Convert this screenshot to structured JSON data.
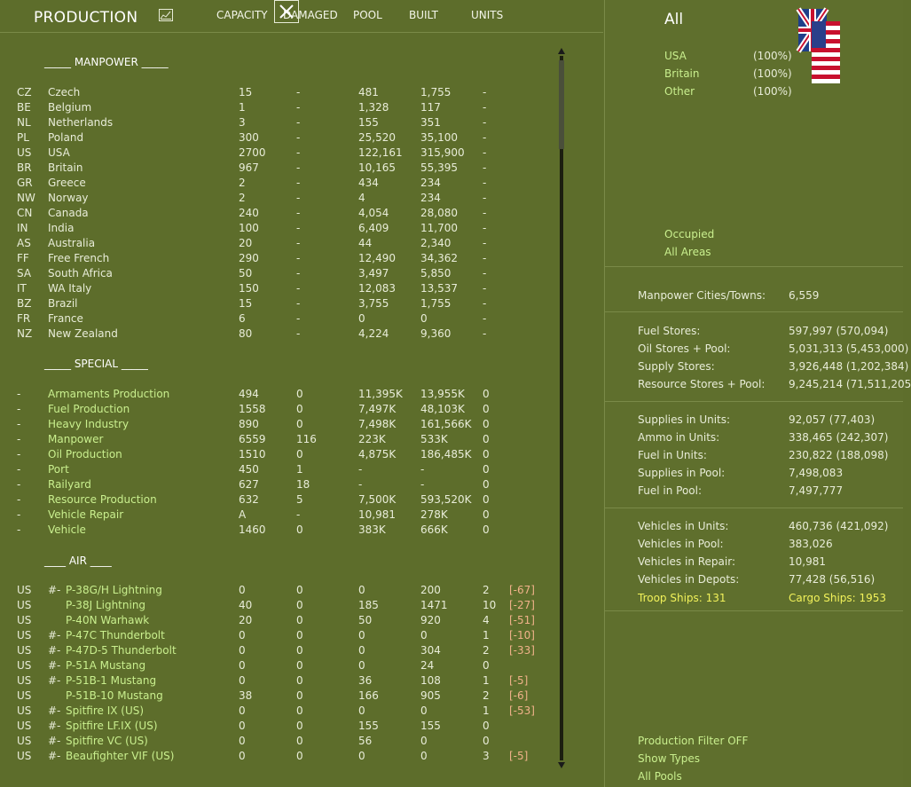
{
  "header": {
    "title": "PRODUCTION",
    "columns": [
      "CAPACITY",
      "DAMAGED",
      "POOL",
      "BUILT",
      "UNITS"
    ]
  },
  "sections": {
    "manpower": "_____ MANPOWER _____",
    "special": "_____ SPECIAL _____",
    "air": "____ AIR ____"
  },
  "manpower_rows": [
    {
      "code": "CZ",
      "name": "Czech",
      "capacity": "15",
      "damaged": "-",
      "pool": "481",
      "built": "1,755",
      "units": "-"
    },
    {
      "code": "BE",
      "name": "Belgium",
      "capacity": "1",
      "damaged": "-",
      "pool": "1,328",
      "built": "117",
      "units": "-"
    },
    {
      "code": "NL",
      "name": "Netherlands",
      "capacity": "3",
      "damaged": "-",
      "pool": "155",
      "built": "351",
      "units": "-"
    },
    {
      "code": "PL",
      "name": "Poland",
      "capacity": "300",
      "damaged": "-",
      "pool": "25,520",
      "built": "35,100",
      "units": "-"
    },
    {
      "code": "US",
      "name": "USA",
      "capacity": "2700",
      "damaged": "-",
      "pool": "122,161",
      "built": "315,900",
      "units": "-"
    },
    {
      "code": "BR",
      "name": "Britain",
      "capacity": "967",
      "damaged": "-",
      "pool": "10,165",
      "built": "55,395",
      "units": "-"
    },
    {
      "code": "GR",
      "name": "Greece",
      "capacity": "2",
      "damaged": "-",
      "pool": "434",
      "built": "234",
      "units": "-"
    },
    {
      "code": "NW",
      "name": "Norway",
      "capacity": "2",
      "damaged": "-",
      "pool": "4",
      "built": "234",
      "units": "-"
    },
    {
      "code": "CN",
      "name": "Canada",
      "capacity": "240",
      "damaged": "-",
      "pool": "4,054",
      "built": "28,080",
      "units": "-"
    },
    {
      "code": "IN",
      "name": "India",
      "capacity": "100",
      "damaged": "-",
      "pool": "6,409",
      "built": "11,700",
      "units": "-"
    },
    {
      "code": "AS",
      "name": "Australia",
      "capacity": "20",
      "damaged": "-",
      "pool": "44",
      "built": "2,340",
      "units": "-"
    },
    {
      "code": "FF",
      "name": "Free French",
      "capacity": "290",
      "damaged": "-",
      "pool": "12,490",
      "built": "34,362",
      "units": "-"
    },
    {
      "code": "SA",
      "name": "South Africa",
      "capacity": "50",
      "damaged": "-",
      "pool": "3,497",
      "built": "5,850",
      "units": "-"
    },
    {
      "code": "IT",
      "name": "WA Italy",
      "capacity": "150",
      "damaged": "-",
      "pool": "12,083",
      "built": "13,537",
      "units": "-"
    },
    {
      "code": "BZ",
      "name": "Brazil",
      "capacity": "15",
      "damaged": "-",
      "pool": "3,755",
      "built": "1,755",
      "units": "-"
    },
    {
      "code": "FR",
      "name": "France",
      "capacity": "6",
      "damaged": "-",
      "pool": "0",
      "built": "0",
      "units": "-"
    },
    {
      "code": "NZ",
      "name": "New Zealand",
      "capacity": "80",
      "damaged": "-",
      "pool": "4,224",
      "built": "9,360",
      "units": "-"
    }
  ],
  "special_rows": [
    {
      "code": "-",
      "name": "Armaments Production",
      "capacity": "494",
      "damaged": "0",
      "pool": "11,395K",
      "built": "13,955K",
      "units": "0"
    },
    {
      "code": "-",
      "name": "Fuel Production",
      "capacity": "1558",
      "damaged": "0",
      "pool": "7,497K",
      "built": "48,103K",
      "units": "0"
    },
    {
      "code": "-",
      "name": "Heavy Industry",
      "capacity": "890",
      "damaged": "0",
      "pool": "7,498K",
      "built": "161,566K",
      "units": "0"
    },
    {
      "code": "-",
      "name": "Manpower",
      "capacity": "6559",
      "damaged": "116",
      "pool": "223K",
      "built": "533K",
      "units": "0"
    },
    {
      "code": "-",
      "name": "Oil Production",
      "capacity": "1510",
      "damaged": "0",
      "pool": "4,875K",
      "built": "186,485K",
      "units": "0"
    },
    {
      "code": "-",
      "name": "Port",
      "capacity": "450",
      "damaged": "1",
      "pool": "-",
      "built": "-",
      "units": "0"
    },
    {
      "code": "-",
      "name": "Railyard",
      "capacity": "627",
      "damaged": "18",
      "pool": "-",
      "built": "-",
      "units": "0"
    },
    {
      "code": "-",
      "name": "Resource Production",
      "capacity": "632",
      "damaged": "5",
      "pool": "7,500K",
      "built": "593,520K",
      "units": "0"
    },
    {
      "code": "-",
      "name": "Vehicle Repair",
      "capacity": "A",
      "damaged": "-",
      "pool": "10,981",
      "built": "278K",
      "units": "0"
    },
    {
      "code": "-",
      "name": "Vehicle",
      "capacity": "1460",
      "damaged": "0",
      "pool": "383K",
      "built": "666K",
      "units": "0"
    }
  ],
  "air_rows": [
    {
      "code": "US",
      "pre": "#-",
      "name": "P-38G/H Lightning",
      "capacity": "0",
      "damaged": "0",
      "pool": "0",
      "built": "200",
      "units": "2",
      "adj": "[-67]"
    },
    {
      "code": "US",
      "pre": "",
      "name": "P-38J Lightning",
      "capacity": "40",
      "damaged": "0",
      "pool": "185",
      "built": "1471",
      "units": "10",
      "adj": "[-27]"
    },
    {
      "code": "US",
      "pre": "",
      "name": "P-40N Warhawk",
      "capacity": "20",
      "damaged": "0",
      "pool": "50",
      "built": "920",
      "units": "4",
      "adj": "[-51]"
    },
    {
      "code": "US",
      "pre": "#-",
      "name": "P-47C Thunderbolt",
      "capacity": "0",
      "damaged": "0",
      "pool": "0",
      "built": "0",
      "units": "1",
      "adj": "[-10]"
    },
    {
      "code": "US",
      "pre": "#-",
      "name": "P-47D-5 Thunderbolt",
      "capacity": "0",
      "damaged": "0",
      "pool": "0",
      "built": "304",
      "units": "2",
      "adj": "[-33]"
    },
    {
      "code": "US",
      "pre": "#-",
      "name": "P-51A Mustang",
      "capacity": "0",
      "damaged": "0",
      "pool": "0",
      "built": "24",
      "units": "0",
      "adj": ""
    },
    {
      "code": "US",
      "pre": "#-",
      "name": "P-51B-1 Mustang",
      "capacity": "0",
      "damaged": "0",
      "pool": "36",
      "built": "108",
      "units": "1",
      "adj": "[-5]"
    },
    {
      "code": "US",
      "pre": "",
      "name": "P-51B-10 Mustang",
      "capacity": "38",
      "damaged": "0",
      "pool": "166",
      "built": "905",
      "units": "2",
      "adj": "[-6]"
    },
    {
      "code": "US",
      "pre": "#-",
      "name": "Spitfire IX (US)",
      "capacity": "0",
      "damaged": "0",
      "pool": "0",
      "built": "0",
      "units": "1",
      "adj": "[-53]"
    },
    {
      "code": "US",
      "pre": "#-",
      "name": "Spitfire LF.IX (US)",
      "capacity": "0",
      "damaged": "0",
      "pool": "155",
      "built": "155",
      "units": "0",
      "adj": ""
    },
    {
      "code": "US",
      "pre": "#-",
      "name": "Spitfire VC (US)",
      "capacity": "0",
      "damaged": "0",
      "pool": "56",
      "built": "0",
      "units": "0",
      "adj": ""
    },
    {
      "code": "US",
      "pre": "#-",
      "name": "Beaufighter VIF (US)",
      "capacity": "0",
      "damaged": "0",
      "pool": "0",
      "built": "0",
      "units": "3",
      "adj": "[-5]"
    }
  ],
  "right": {
    "title": "All",
    "nations": [
      {
        "name": "USA",
        "pct": "(100%)"
      },
      {
        "name": "Britain",
        "pct": "(100%)"
      },
      {
        "name": "Other",
        "pct": "(100%)"
      }
    ],
    "filters": [
      "Occupied",
      "All Areas"
    ],
    "groups": [
      [
        {
          "label": "Manpower Cities/Towns:",
          "value": "6,559"
        }
      ],
      [
        {
          "label": "Fuel Stores:",
          "value": "597,997 (570,094)"
        },
        {
          "label": "Oil Stores + Pool:",
          "value": "5,031,313 (5,453,000)"
        },
        {
          "label": "Supply Stores:",
          "value": "3,926,448 (1,202,384)"
        },
        {
          "label": "Resource Stores + Pool:",
          "value": "9,245,214 (71,511,205"
        }
      ],
      [
        {
          "label": "Supplies in Units:",
          "value": "92,057 (77,403)"
        },
        {
          "label": "Ammo in Units:",
          "value": "338,465 (242,307)"
        },
        {
          "label": "Fuel in Units:",
          "value": "230,822 (188,098)"
        },
        {
          "label": "Supplies in Pool:",
          "value": "7,498,083"
        },
        {
          "label": "Fuel in Pool:",
          "value": "7,497,777"
        }
      ],
      [
        {
          "label": "Vehicles in Units:",
          "value": "460,736 (421,092)"
        },
        {
          "label": "Vehicles in Pool:",
          "value": "383,026"
        },
        {
          "label": "Vehicles in Repair:",
          "value": "10,981"
        },
        {
          "label": "Vehicles in Depots:",
          "value": "77,428 (56,516)"
        }
      ]
    ],
    "ships": {
      "troop": "Troop Ships: 131",
      "cargo": "Cargo Ships: 1953"
    },
    "bottom_links": [
      "Production Filter OFF",
      "Show Types",
      "All Pools"
    ]
  },
  "colors": {
    "background": "#5e6e2c",
    "link": "#c9ef8e",
    "highlight": "#f2f25a",
    "adjustment": "#f0b28a"
  }
}
